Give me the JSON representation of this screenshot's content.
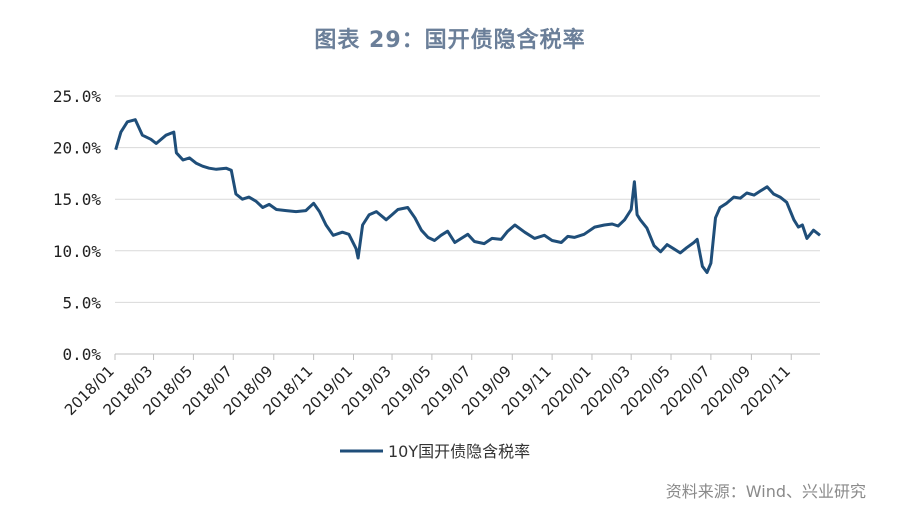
{
  "title": "图表 29：国开债隐含税率",
  "source": "资料来源：Wind、兴业研究",
  "chart_data": {
    "type": "line",
    "title": "图表 29：国开债隐含税率",
    "xlabel": "",
    "ylabel": "",
    "x_tick_labels": [
      "2018/01",
      "2018/03",
      "2018/05",
      "2018/07",
      "2018/09",
      "2018/11",
      "2019/01",
      "2019/03",
      "2019/05",
      "2019/07",
      "2019/09",
      "2019/11",
      "2020/01",
      "2020/03",
      "2020/05",
      "2020/07",
      "2020/09",
      "2020/11"
    ],
    "y_tick_labels": [
      "0.0%",
      "5.0%",
      "10.0%",
      "15.0%",
      "20.0%",
      "25.0%"
    ],
    "ylim": [
      0,
      25
    ],
    "xlim": [
      "2018-01-01",
      "2020-12-15"
    ],
    "grid": "horizontal",
    "legend_position": "bottom",
    "line_color": "#1f4e79",
    "series": [
      {
        "name": "10Y国开债隐含税率",
        "x": [
          "2018-01-02",
          "2018-01-10",
          "2018-01-20",
          "2018-02-01",
          "2018-02-12",
          "2018-02-25",
          "2018-03-05",
          "2018-03-20",
          "2018-04-01",
          "2018-04-05",
          "2018-04-15",
          "2018-04-25",
          "2018-05-05",
          "2018-05-15",
          "2018-05-25",
          "2018-06-05",
          "2018-06-20",
          "2018-06-28",
          "2018-07-05",
          "2018-07-15",
          "2018-07-25",
          "2018-08-05",
          "2018-08-15",
          "2018-08-25",
          "2018-09-05",
          "2018-09-20",
          "2018-10-05",
          "2018-10-20",
          "2018-11-01",
          "2018-11-10",
          "2018-11-20",
          "2018-12-01",
          "2018-12-15",
          "2018-12-25",
          "2019-01-05",
          "2019-01-08",
          "2019-01-15",
          "2019-01-25",
          "2019-02-05",
          "2019-02-20",
          "2019-03-01",
          "2019-03-10",
          "2019-03-25",
          "2019-04-05",
          "2019-04-15",
          "2019-04-25",
          "2019-05-05",
          "2019-05-15",
          "2019-05-25",
          "2019-06-05",
          "2019-06-15",
          "2019-06-25",
          "2019-07-05",
          "2019-07-20",
          "2019-08-01",
          "2019-08-15",
          "2019-08-25",
          "2019-09-05",
          "2019-09-20",
          "2019-10-05",
          "2019-10-20",
          "2019-11-01",
          "2019-11-15",
          "2019-11-25",
          "2019-12-05",
          "2019-12-20",
          "2020-01-05",
          "2020-01-20",
          "2020-02-01",
          "2020-02-10",
          "2020-02-20",
          "2020-03-01",
          "2020-03-06",
          "2020-03-10",
          "2020-03-15",
          "2020-03-25",
          "2020-04-05",
          "2020-04-15",
          "2020-04-25",
          "2020-05-05",
          "2020-05-15",
          "2020-05-25",
          "2020-06-05",
          "2020-06-10",
          "2020-06-18",
          "2020-06-25",
          "2020-07-01",
          "2020-07-08",
          "2020-07-15",
          "2020-07-25",
          "2020-08-05",
          "2020-08-15",
          "2020-08-25",
          "2020-09-05",
          "2020-09-15",
          "2020-09-25",
          "2020-10-05",
          "2020-10-15",
          "2020-10-25",
          "2020-11-05",
          "2020-11-12",
          "2020-11-18",
          "2020-11-25",
          "2020-12-05",
          "2020-12-15"
        ],
        "values": [
          19.8,
          21.5,
          22.5,
          22.7,
          21.2,
          20.8,
          20.4,
          21.2,
          21.5,
          19.5,
          18.8,
          19.0,
          18.5,
          18.2,
          18.0,
          17.9,
          18.0,
          17.8,
          15.5,
          15.0,
          15.2,
          14.8,
          14.2,
          14.5,
          14.0,
          13.9,
          13.8,
          13.9,
          14.6,
          13.8,
          12.5,
          11.5,
          11.8,
          11.6,
          10.2,
          9.3,
          12.5,
          13.5,
          13.8,
          13.0,
          13.5,
          14.0,
          14.2,
          13.2,
          12.0,
          11.3,
          11.0,
          11.5,
          11.9,
          10.8,
          11.2,
          11.6,
          10.9,
          10.7,
          11.2,
          11.1,
          11.9,
          12.5,
          11.8,
          11.2,
          11.5,
          11.0,
          10.8,
          11.4,
          11.3,
          11.6,
          12.3,
          12.5,
          12.6,
          12.4,
          13.0,
          14.0,
          16.7,
          13.5,
          13.0,
          12.2,
          10.5,
          9.9,
          10.6,
          10.2,
          9.8,
          10.3,
          10.8,
          11.1,
          8.5,
          7.9,
          8.8,
          13.2,
          14.2,
          14.6,
          15.2,
          15.1,
          15.6,
          15.4,
          15.8,
          16.2,
          15.5,
          15.2,
          14.7,
          13.0,
          12.3,
          12.5,
          11.2,
          12.0,
          11.5
        ]
      }
    ]
  }
}
